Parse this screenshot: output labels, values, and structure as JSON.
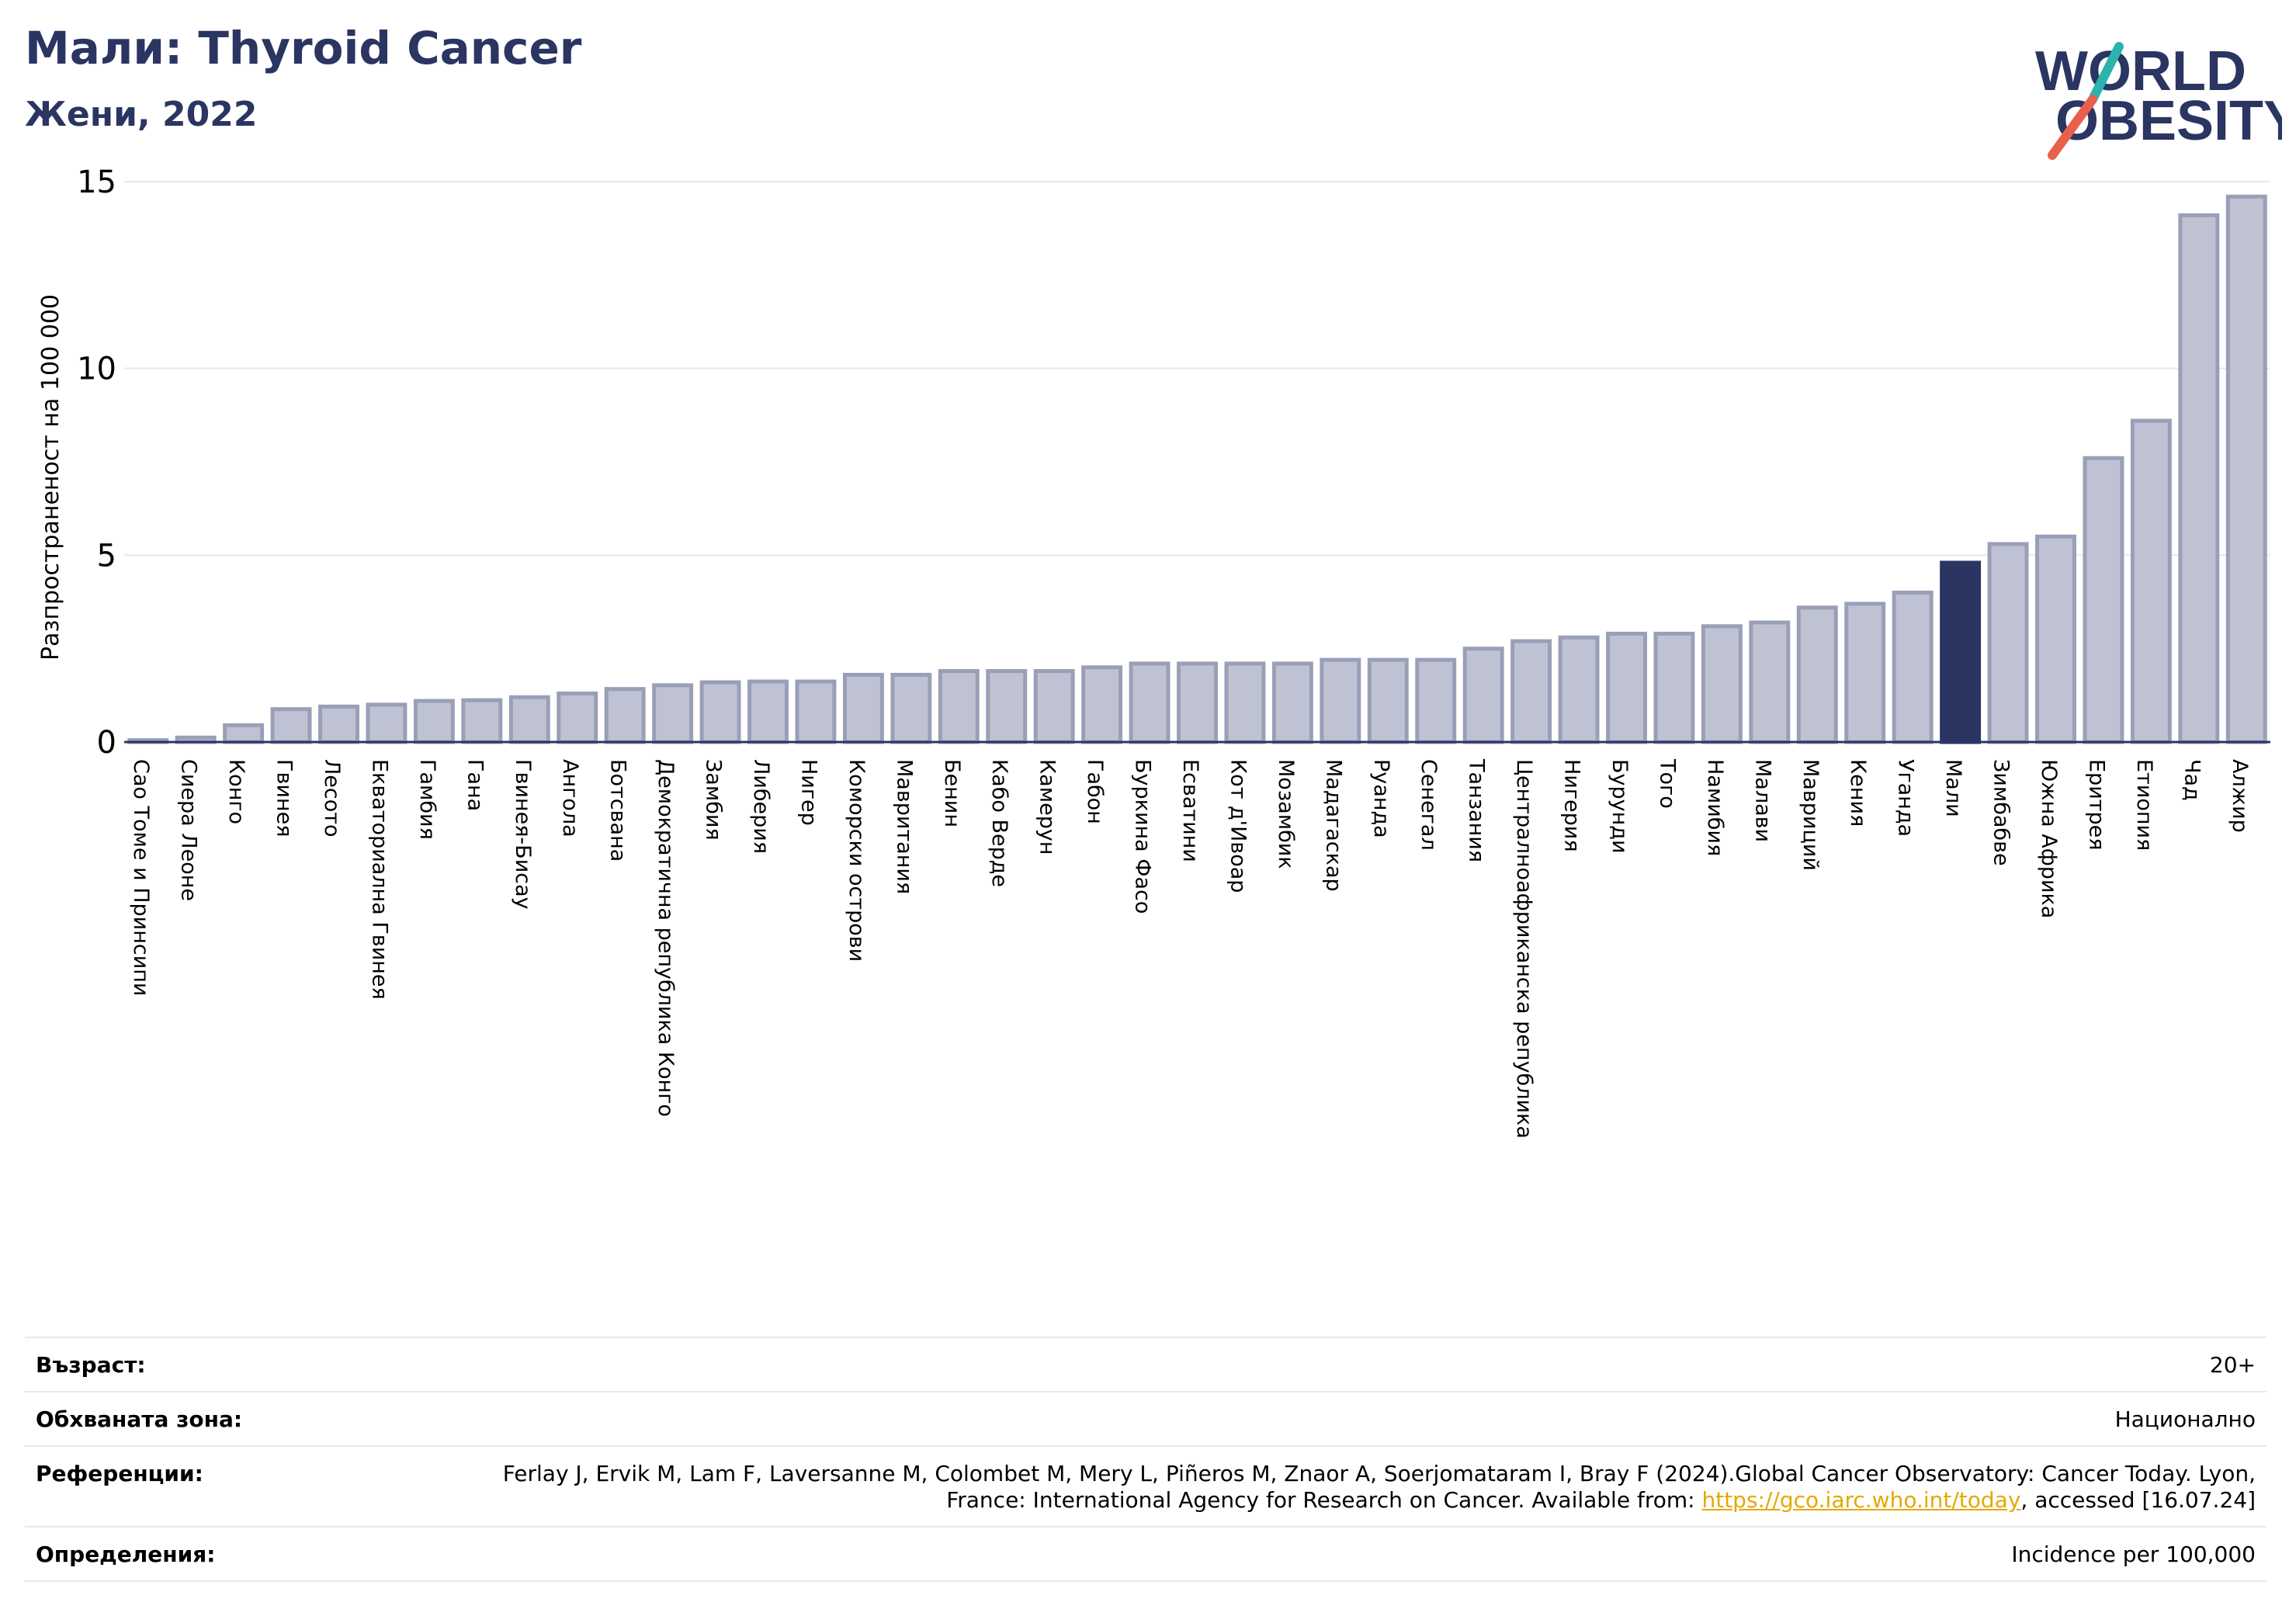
{
  "header": {
    "title": "Мали: Thyroid Cancer",
    "subtitle": "Жени, 2022"
  },
  "logo": {
    "line1": "WORLD",
    "line2": "OBESITY",
    "colors": {
      "text": "#2b3562",
      "slash_top": "#2bb3ad",
      "slash_bottom": "#e8604c"
    }
  },
  "colors": {
    "bar_fill": "#bfc2d2",
    "bar_stroke": "#9a9fb8",
    "highlight_fill": "#2b3562",
    "axis_text": "#000000",
    "grid": "#e6e7ee"
  },
  "chart_data": {
    "type": "bar",
    "title": "Мали: Thyroid Cancer",
    "subtitle": "Жени, 2022",
    "ylabel": "Разпространеност  на 100 000",
    "xlabel": "",
    "ylim": [
      0,
      15
    ],
    "yticks": [
      0,
      5,
      10,
      15
    ],
    "grid": true,
    "highlight": "Мали",
    "categories": [
      "Сао Томе и Принсипи",
      "Сиера Леоне",
      "Конго",
      "Гвинея",
      "Лесото",
      "Екваториална Гвинея",
      "Гамбия",
      "Гана",
      "Гвинея-Бисау",
      "Ангола",
      "Ботсвана",
      "Демократична република Конго",
      "Замбия",
      "Либерия",
      "Нигер",
      "Коморски острови",
      "Мавритания",
      "Бенин",
      "Кабо Верде",
      "Камерун",
      "Габон",
      "Буркина Фасо",
      "Есватини",
      "Кот д'Ивоар",
      "Мозамбик",
      "Мадагаскар",
      "Руанда",
      "Сенегал",
      "Танзания",
      "Централноафриканска република",
      "Нигерия",
      "Бурунди",
      "Того",
      "Намибия",
      "Малави",
      "Мавриций",
      "Кения",
      "Уганда",
      "Мали",
      "Зимбабве",
      "Южна Африка",
      "Еритрея",
      "Етиопия",
      "Чад",
      "Алжир"
    ],
    "values": [
      0.05,
      0.12,
      0.45,
      0.88,
      0.95,
      1.0,
      1.1,
      1.12,
      1.2,
      1.3,
      1.42,
      1.52,
      1.6,
      1.62,
      1.62,
      1.8,
      1.8,
      1.9,
      1.9,
      1.9,
      2.0,
      2.1,
      2.1,
      2.1,
      2.1,
      2.2,
      2.2,
      2.2,
      2.5,
      2.7,
      2.8,
      2.9,
      2.9,
      3.1,
      3.2,
      3.6,
      3.7,
      4.0,
      4.8,
      5.3,
      5.5,
      7.6,
      8.6,
      14.1,
      14.6
    ]
  },
  "info": {
    "age_label": "Възраст:",
    "age_value": "20+",
    "area_label": "Обхваната зона:",
    "area_value": "Национално",
    "ref_label": "Референции:",
    "ref_text": "Ferlay J, Ervik M, Lam F, Laversanne M, Colombet M, Mery L, Piñeros M, Znaor A, Soerjomataram I, Bray F (2024).Global Cancer Observatory: Cancer Today. Lyon, France: International Agency for Research on Cancer. Available from: ",
    "ref_link": "https://gco.iarc.who.int/today",
    "ref_tail": ", accessed [16.07.24]",
    "def_label": "Определения:",
    "def_value": "Incidence per 100,000"
  }
}
